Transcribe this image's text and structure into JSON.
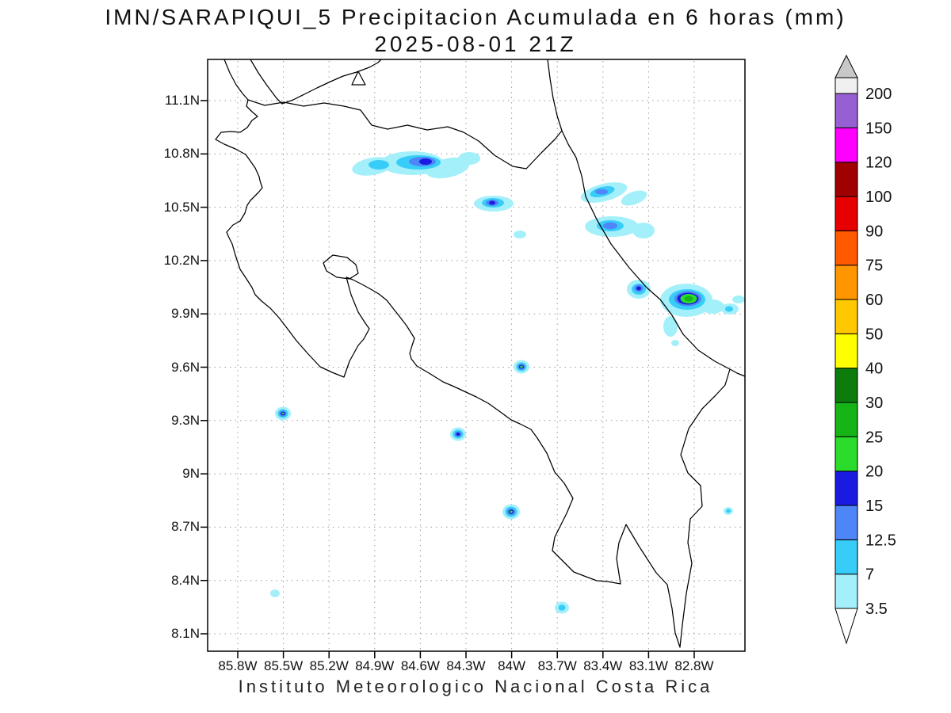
{
  "title": {
    "line1": "IMN/SARAPIQUI_5 Precipitacion Acumulada en 6 horas (mm)",
    "line2": "2025-08-01 21Z"
  },
  "footer": "Instituto Meteorologico Nacional Costa Rica",
  "axes": {
    "y_ticks": [
      "11.1N",
      "10.8N",
      "10.5N",
      "10.2N",
      "9.9N",
      "9.6N",
      "9.3N",
      "9N",
      "8.7N",
      "8.4N",
      "8.1N"
    ],
    "x_ticks": [
      "85.8W",
      "85.5W",
      "85.2W",
      "84.9W",
      "84.6W",
      "84.3W",
      "84W",
      "83.7W",
      "83.4W",
      "83.1W",
      "82.8W"
    ]
  },
  "colorbar": {
    "levels_mm_bottom_to_top": [
      "3.5",
      "7",
      "12.5",
      "15",
      "20",
      "25",
      "30",
      "40",
      "50",
      "60",
      "75",
      "90",
      "100",
      "120",
      "150",
      "200"
    ],
    "band_colors_bottom_to_top": [
      "#a4f0fa",
      "#38cdf8",
      "#4f86f7",
      "#1a1ae0",
      "#2cdc2c",
      "#17b417",
      "#0c7d0c",
      "#ffff00",
      "#ffc800",
      "#ff9600",
      "#ff5a00",
      "#e60000",
      "#a00000",
      "#ff00ff",
      "#9660d2"
    ],
    "over_color": "#f0f0f0",
    "cap_color": "#c8c8c8",
    "under_color": "#ffffff"
  },
  "map": {
    "region": "Costa Rica",
    "precip_cells": [
      {
        "lon": "84.7W",
        "lat": "10.74N",
        "peak_band_mm": "12.5-15",
        "shape": "elongated band"
      },
      {
        "lon": "84.1W",
        "lat": "10.52N",
        "peak_band_mm": "15-20"
      },
      {
        "lon": "83.95W",
        "lat": "10.35N",
        "peak_band_mm": "3.5-7"
      },
      {
        "lon": "83.4W",
        "lat": "10.48N",
        "peak_band_mm": "12.5-15",
        "shape": "coastal cluster"
      },
      {
        "lon": "83.17W",
        "lat": "10.04N",
        "peak_band_mm": "15-20"
      },
      {
        "lon": "82.85W",
        "lat": "9.97N",
        "peak_band_mm": "25-30",
        "shape": "strong cell with green core"
      },
      {
        "lon": "82.57W",
        "lat": "9.92N",
        "peak_band_mm": "7-12.5"
      },
      {
        "lon": "83.94W",
        "lat": "9.60N",
        "peak_band_mm": "20-25"
      },
      {
        "lon": "85.50W",
        "lat": "9.33N",
        "peak_band_mm": "20-25"
      },
      {
        "lon": "84.35W",
        "lat": "9.22N",
        "peak_band_mm": "15-20"
      },
      {
        "lon": "84.00W",
        "lat": "8.79N",
        "peak_band_mm": "20-25"
      },
      {
        "lon": "85.56W",
        "lat": "8.33N",
        "peak_band_mm": "3.5-7"
      },
      {
        "lon": "83.67W",
        "lat": "8.25N",
        "peak_band_mm": "7-12.5"
      },
      {
        "lon": "82.58W",
        "lat": "8.79N",
        "peak_band_mm": "7-12.5"
      }
    ]
  }
}
